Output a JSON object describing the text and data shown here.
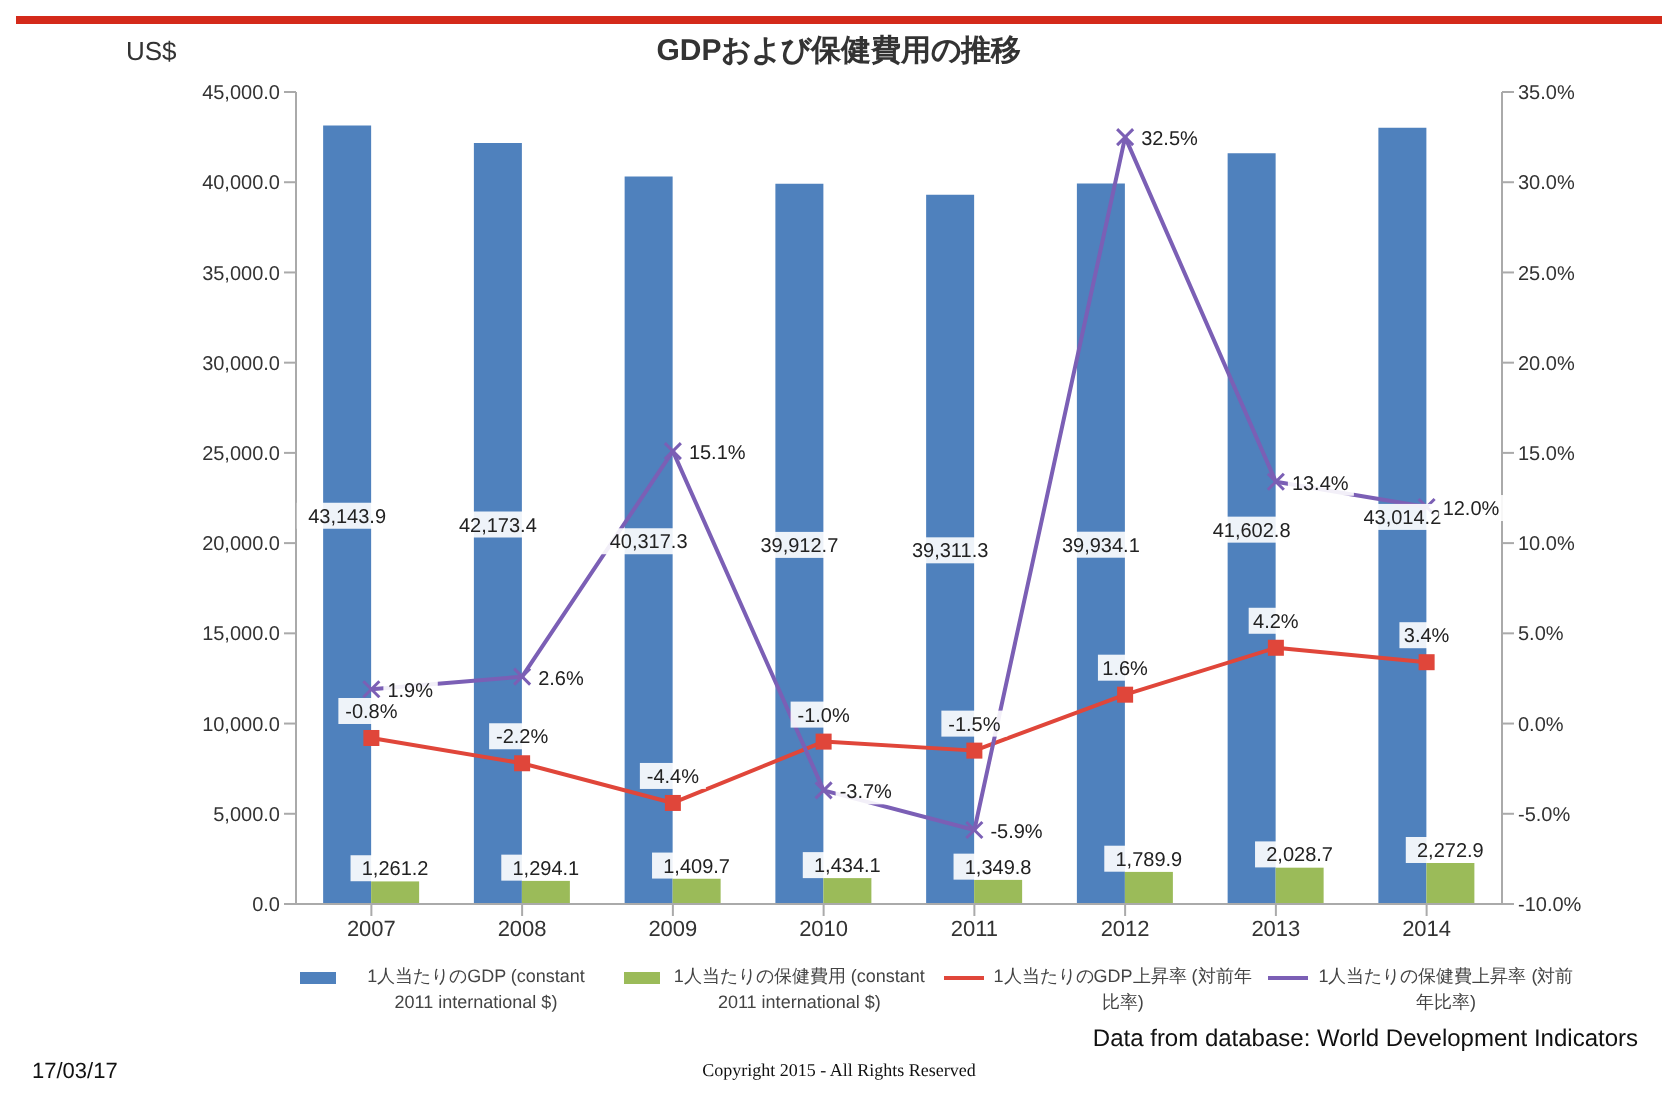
{
  "chart_data": {
    "type": "bar",
    "title": "GDPおよび保健費用の推移",
    "ylabel": "US$",
    "categories": [
      "2007",
      "2008",
      "2009",
      "2010",
      "2011",
      "2012",
      "2013",
      "2014"
    ],
    "series": [
      {
        "name": "1人当たりのGDP (constant 2011 international $)",
        "color": "#4f81bd",
        "values": [
          43143.9,
          42173.4,
          40317.3,
          39912.7,
          39311.3,
          39934.1,
          41602.8,
          43014.2
        ],
        "value_labels": [
          "43,143.9",
          "42,173.4",
          "40,317.3",
          "39,912.7",
          "39,311.3",
          "39,934.1",
          "41,602.8",
          "43,014.2"
        ]
      },
      {
        "name": "1人当たりの保健費用 (constant 2011 international $)",
        "color": "#9bbb59",
        "values": [
          1261.2,
          1294.1,
          1409.7,
          1434.1,
          1349.8,
          1789.9,
          2028.7,
          2272.9
        ],
        "value_labels": [
          "1,261.2",
          "1,294.1",
          "1,409.7",
          "1,434.1",
          "1,349.8",
          "1,789.9",
          "2,028.7",
          "2,272.9"
        ]
      },
      {
        "name": "1人当たりのGDP上昇率 (対前年比率)",
        "type": "line",
        "axis": "y2",
        "marker": "square",
        "color": "#e0463a",
        "values": [
          -0.8,
          -2.2,
          -4.4,
          -1.0,
          -1.5,
          1.6,
          4.2,
          3.4
        ],
        "value_labels": [
          "-0.8%",
          "-2.2%",
          "-4.4%",
          "-1.0%",
          "-1.5%",
          "1.6%",
          "4.2%",
          "3.4%"
        ]
      },
      {
        "name": "1人当たりの保健費上昇率 (対前年比率)",
        "type": "line",
        "axis": "y2",
        "marker": "cross",
        "color": "#7b5fb5",
        "values": [
          1.9,
          2.6,
          15.1,
          -3.7,
          -5.9,
          32.5,
          13.4,
          12.0
        ],
        "value_labels": [
          "1.9%",
          "2.6%",
          "15.1%",
          "-3.7%",
          "-5.9%",
          "32.5%",
          "13.4%",
          "12.0%"
        ]
      }
    ],
    "ylim": [
      0,
      45000
    ],
    "yticks": [
      {
        "value": 0,
        "label": "0.0"
      },
      {
        "value": 5000,
        "label": "5,000.0"
      },
      {
        "value": 10000,
        "label": "10,000.0"
      },
      {
        "value": 15000,
        "label": "15,000.0"
      },
      {
        "value": 20000,
        "label": "20,000.0"
      },
      {
        "value": 25000,
        "label": "25,000.0"
      },
      {
        "value": 30000,
        "label": "30,000.0"
      },
      {
        "value": 35000,
        "label": "35,000.0"
      },
      {
        "value": 40000,
        "label": "40,000.0"
      },
      {
        "value": 45000,
        "label": "45,000.0"
      }
    ],
    "y2lim": [
      -10,
      35
    ],
    "y2ticks": [
      {
        "value": -10,
        "label": "-10.0%"
      },
      {
        "value": -5,
        "label": "-5.0%"
      },
      {
        "value": 0,
        "label": "0.0%"
      },
      {
        "value": 5,
        "label": "5.0%"
      },
      {
        "value": 10,
        "label": "10.0%"
      },
      {
        "value": 15,
        "label": "15.0%"
      },
      {
        "value": 20,
        "label": "20.0%"
      },
      {
        "value": 25,
        "label": "25.0%"
      },
      {
        "value": 30,
        "label": "30.0%"
      },
      {
        "value": 35,
        "label": "35.0%"
      }
    ],
    "legend": "bottom",
    "annotations": [
      "Data from database: World Development Indicators",
      "17/03/17",
      "Copyright 2015 - All Rights Reserved"
    ]
  }
}
